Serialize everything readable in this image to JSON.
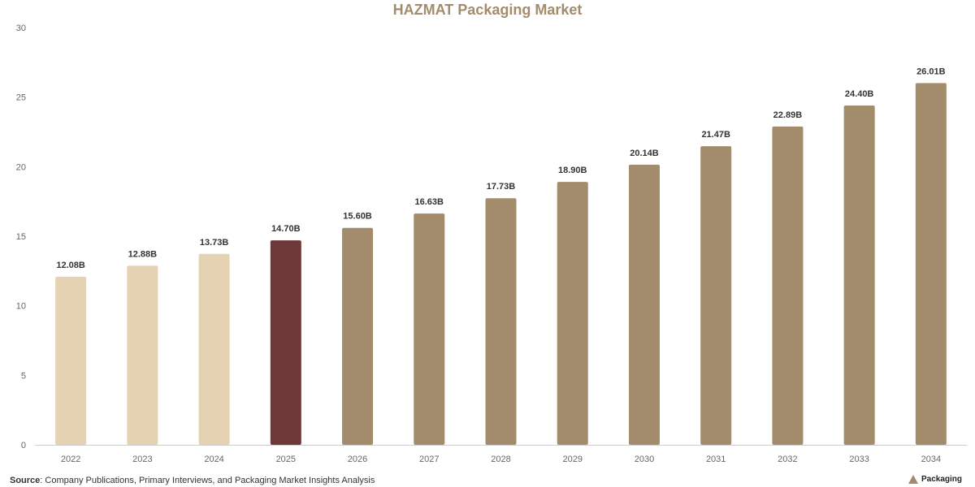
{
  "chart_data": {
    "type": "bar",
    "title": "HAZMAT Packaging Market",
    "categories": [
      "2022",
      "2023",
      "2024",
      "2025",
      "2026",
      "2027",
      "2028",
      "2029",
      "2030",
      "2031",
      "2032",
      "2033",
      "2034"
    ],
    "values": [
      12.08,
      12.88,
      13.73,
      14.7,
      15.6,
      16.63,
      17.73,
      18.9,
      20.14,
      21.47,
      22.89,
      24.4,
      26.01
    ],
    "data_labels": [
      "12.08B",
      "12.88B",
      "13.73B",
      "14.70B",
      "15.60B",
      "16.63B",
      "17.73B",
      "18.90B",
      "20.14B",
      "21.47B",
      "22.89B",
      "24.40B",
      "26.01B"
    ],
    "bar_colors": [
      "#e5d2b3",
      "#e5d2b3",
      "#e5d2b3",
      "#6e3838",
      "#a38c6b",
      "#a38c6b",
      "#a38c6b",
      "#a38c6b",
      "#a38c6b",
      "#a38c6b",
      "#a38c6b",
      "#a38c6b",
      "#a38c6b"
    ],
    "ylim": [
      0,
      30
    ],
    "yticks": [
      0,
      5,
      10,
      15,
      20,
      25,
      30
    ],
    "grid": false,
    "xlabel": "",
    "ylabel": ""
  },
  "source": {
    "label": "Source",
    "text": ": Company Publications, Primary Interviews, and Packaging Market Insights Analysis"
  },
  "brand": {
    "name": "Packaging",
    "icon": "box-logo-icon"
  },
  "colors": {
    "title": "#a38c6b",
    "axis": "#cccccc"
  }
}
